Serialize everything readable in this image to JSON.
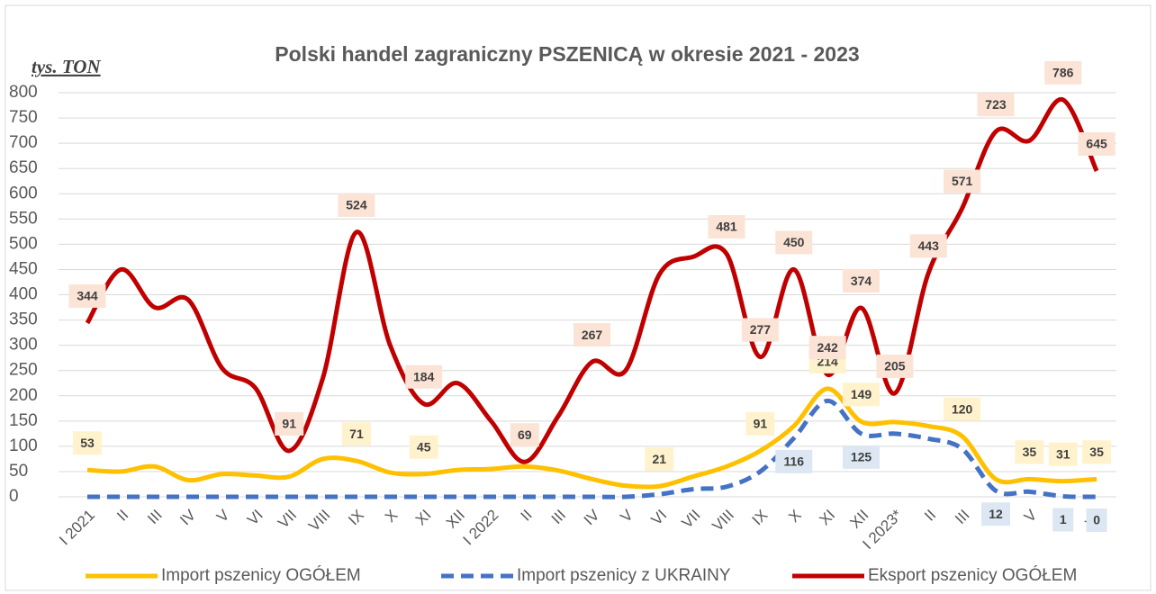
{
  "chart_data": {
    "type": "line",
    "title": "Polski handel zagraniczny PSZENICĄ w okresie 2021 - 2023",
    "y_label": "tys. TON",
    "categories": [
      "I 2021",
      "II",
      "III",
      "IV",
      "V",
      "VI",
      "VII",
      "VIII",
      "IX",
      "X",
      "XI",
      "XII",
      "I 2022",
      "II",
      "III",
      "IV",
      "V",
      "VI",
      "VII",
      "VIII",
      "IX",
      "X",
      "XI",
      "XII",
      "I 2023*",
      "II",
      "III",
      "IV",
      "V",
      "VI",
      "VII"
    ],
    "ylim": [
      0,
      800
    ],
    "yticks": [
      0,
      50,
      100,
      150,
      200,
      250,
      300,
      350,
      400,
      450,
      500,
      550,
      600,
      650,
      700,
      750,
      800
    ],
    "grid": true,
    "smooth": true,
    "series": [
      {
        "name": "Import pszenicy OGÓŁEM",
        "color": "#ffc000",
        "dash": false,
        "label_color": "#fff2cc",
        "label_side": "above",
        "values": [
          53,
          50,
          60,
          33,
          45,
          42,
          40,
          75,
          71,
          48,
          45,
          53,
          55,
          60,
          52,
          35,
          22,
          21,
          40,
          60,
          91,
          140,
          214,
          149,
          148,
          140,
          120,
          35,
          35,
          31,
          35
        ],
        "labeled": [
          0,
          8,
          10,
          17,
          20,
          22,
          23,
          26,
          28,
          29,
          30
        ]
      },
      {
        "name": "Import pszenicy z UKRAINY",
        "color": "#4472c4",
        "dash": true,
        "label_color": "#dde7f3",
        "label_side": "below",
        "values": [
          0,
          0,
          0,
          0,
          0,
          0,
          0,
          0,
          0,
          0,
          0,
          0,
          0,
          0,
          0,
          0,
          0,
          5,
          15,
          20,
          50,
          116,
          190,
          125,
          125,
          115,
          95,
          12,
          10,
          1,
          0
        ],
        "labeled": [
          21,
          23,
          27,
          29,
          30
        ]
      },
      {
        "name": "Eksport pszenicy OGÓŁEM",
        "color": "#c00000",
        "dash": false,
        "label_color": "#fbe3d6",
        "label_side": "above",
        "values": [
          344,
          450,
          375,
          390,
          255,
          215,
          91,
          235,
          524,
          300,
          184,
          225,
          150,
          69,
          160,
          267,
          250,
          440,
          475,
          481,
          277,
          450,
          242,
          374,
          205,
          443,
          571,
          723,
          705,
          786,
          645
        ],
        "labeled": [
          0,
          6,
          8,
          10,
          13,
          15,
          19,
          20,
          21,
          22,
          23,
          24,
          25,
          26,
          27,
          29,
          30
        ]
      }
    ]
  }
}
